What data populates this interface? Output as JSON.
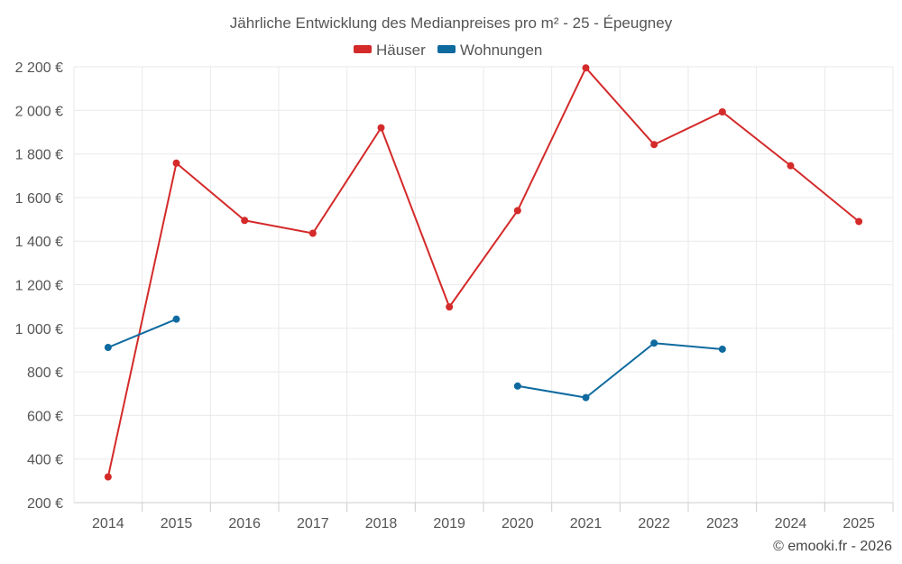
{
  "chart_data": {
    "type": "line",
    "title": "Jährliche Entwicklung des Medianpreises pro m² - 25 - Épeugney",
    "categories": [
      "2014",
      "2015",
      "2016",
      "2017",
      "2018",
      "2019",
      "2020",
      "2021",
      "2022",
      "2023",
      "2024",
      "2025"
    ],
    "series": [
      {
        "name": "Häuser",
        "color": "#d42a2a",
        "values": [
          318,
          1758,
          1495,
          1436,
          1920,
          1098,
          1540,
          2195,
          1843,
          1993,
          1746,
          1490
        ]
      },
      {
        "name": "Wohnungen",
        "color": "#0f6aa0",
        "values": [
          912,
          1042,
          null,
          null,
          null,
          null,
          735,
          682,
          932,
          904,
          null,
          null
        ]
      }
    ],
    "ylim": [
      200,
      2200
    ],
    "yticks": [
      200,
      400,
      600,
      800,
      1000,
      1200,
      1400,
      1600,
      1800,
      2000,
      2200
    ],
    "ytick_labels": [
      "200 €",
      "400 €",
      "600 €",
      "800 €",
      "1 000 €",
      "1 200 €",
      "1 400 €",
      "1 600 €",
      "1 800 €",
      "2 000 €",
      "2 200 €"
    ],
    "xlabel": "",
    "ylabel": "",
    "legend_position": "top-center",
    "grid": true
  },
  "credit": "© emooki.fr - 2026"
}
